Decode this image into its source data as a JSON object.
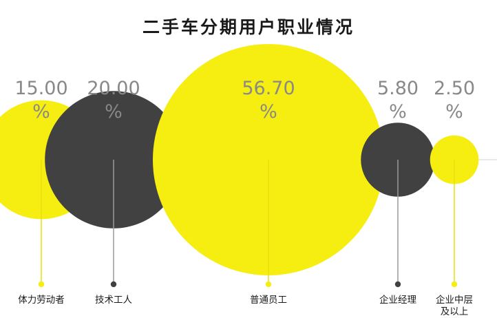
{
  "chart_data": {
    "type": "bubble",
    "title": "二手车分期用户职业情况",
    "categories": [
      "体力劳动者",
      "技术工人",
      "普通员工",
      "企业经理",
      "企业中层\n及以上"
    ],
    "values": [
      15.0,
      20.0,
      56.7,
      5.8,
      2.5
    ],
    "value_labels": [
      "15.00\n%",
      "20.00\n%",
      "56.70\n%",
      "5.80\n%",
      "2.50\n%"
    ],
    "series": [
      {
        "values": [
          15.0,
          20.0,
          56.7,
          5.8,
          2.5
        ]
      }
    ],
    "colors": [
      "#f5ee10",
      "#414141",
      "#f5ee10",
      "#414141",
      "#f5ee10"
    ],
    "label_colors": [
      "#888888",
      "#888888",
      "#888888",
      "#888888",
      "#888888"
    ],
    "unit": "%"
  }
}
